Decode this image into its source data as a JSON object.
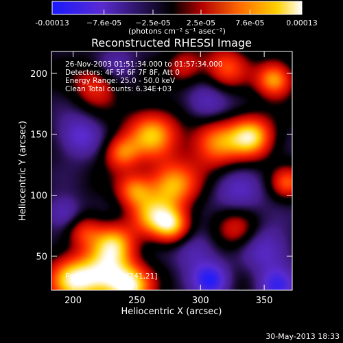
{
  "chart_data": {
    "type": "heatmap",
    "title": "Reconstructed RHESSI Image",
    "xlabel": "Heliocentric X (arcsec)",
    "ylabel": "Heliocentric Y (arcsec)",
    "xlim": [
      183,
      372
    ],
    "ylim": [
      22,
      218
    ],
    "xticks": [
      200,
      250,
      300,
      350
    ],
    "yticks": [
      50,
      100,
      150,
      200
    ],
    "colorbar": {
      "range": [
        -0.00013,
        0.00013
      ],
      "tick_values": [
        -0.00013,
        -7.6e-05,
        -2.5e-05,
        2.5e-05,
        7.6e-05,
        0.00013
      ],
      "tick_labels": [
        "-0.00013",
        "−7.6e-05",
        "−2.5e-05",
        "2.5e-05",
        "7.6e-05",
        "0.00013"
      ],
      "unit_label": "(photons cm⁻² s⁻¹ asec⁻²)",
      "colors": [
        "#1a1aff",
        "#5a2bd0",
        "#000000",
        "#b40000",
        "#ff6a00",
        "#ffd000",
        "#ffffff"
      ]
    },
    "annotations": [
      "26-Nov-2003 01:51:34.000 to 01:57:34.000",
      "Detectors: 4F 5F 6F 7F 8F, Att 0",
      "Energy Range: 25.0 - 50.0 keV",
      "Clean     Total counts: 6.34E+03"
    ],
    "peak_label": "Position of Peak: [241,21]",
    "peak": [
      241,
      21
    ],
    "sources": [
      {
        "x": 200,
        "y": 30,
        "v": 1.0,
        "s": 14
      },
      {
        "x": 225,
        "y": 35,
        "v": 0.9,
        "s": 14
      },
      {
        "x": 245,
        "y": 25,
        "v": 1.0,
        "s": 12
      },
      {
        "x": 232,
        "y": 60,
        "v": 0.85,
        "s": 12
      },
      {
        "x": 208,
        "y": 70,
        "v": 0.5,
        "s": 10
      },
      {
        "x": 262,
        "y": 82,
        "v": 0.75,
        "s": 12
      },
      {
        "x": 278,
        "y": 75,
        "v": 0.85,
        "s": 10
      },
      {
        "x": 248,
        "y": 104,
        "v": 0.7,
        "s": 10
      },
      {
        "x": 278,
        "y": 108,
        "v": 0.9,
        "s": 14
      },
      {
        "x": 238,
        "y": 135,
        "v": 0.7,
        "s": 10
      },
      {
        "x": 262,
        "y": 150,
        "v": 0.9,
        "s": 14
      },
      {
        "x": 312,
        "y": 143,
        "v": 0.8,
        "s": 14
      },
      {
        "x": 340,
        "y": 148,
        "v": 1.0,
        "s": 12
      },
      {
        "x": 358,
        "y": 195,
        "v": 0.9,
        "s": 10
      },
      {
        "x": 218,
        "y": 190,
        "v": 0.55,
        "s": 12
      },
      {
        "x": 368,
        "y": 110,
        "v": 0.6,
        "s": 9
      },
      {
        "x": 328,
        "y": 72,
        "v": 0.5,
        "s": 12
      },
      {
        "x": 320,
        "y": 205,
        "v": 0.6,
        "s": 12
      },
      {
        "x": 288,
        "y": 205,
        "v": 0.45,
        "s": 10
      },
      {
        "x": 352,
        "y": 55,
        "v": -0.45,
        "s": 14
      },
      {
        "x": 308,
        "y": 30,
        "v": -0.75,
        "s": 10
      },
      {
        "x": 360,
        "y": 25,
        "v": -0.6,
        "s": 10
      },
      {
        "x": 205,
        "y": 148,
        "v": -0.5,
        "s": 12
      },
      {
        "x": 193,
        "y": 85,
        "v": -0.45,
        "s": 10
      },
      {
        "x": 305,
        "y": 175,
        "v": -0.45,
        "s": 12
      },
      {
        "x": 330,
        "y": 100,
        "v": -0.4,
        "s": 14
      },
      {
        "x": 232,
        "y": 208,
        "v": -0.3,
        "s": 12
      },
      {
        "x": 295,
        "y": 55,
        "v": -0.4,
        "s": 12
      }
    ]
  },
  "footer_timestamp": "30-May-2013 18:33"
}
